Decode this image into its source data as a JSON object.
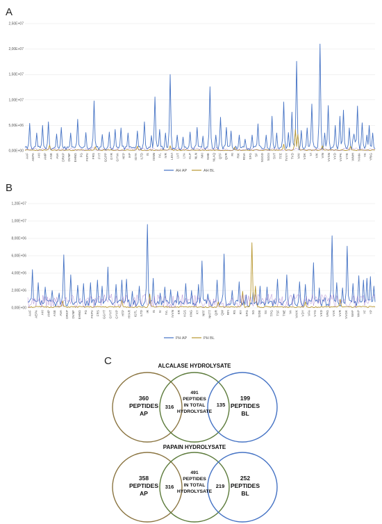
{
  "colors": {
    "ap_line": "#4472c4",
    "bl_line": "#b8972f",
    "overlap_line": "#8e5cc0",
    "venn_ap": "#8a7440",
    "venn_total": "#5b7a3a",
    "venn_bl": "#4472c4"
  },
  "chart_data": [
    {
      "type": "line",
      "panel": "A",
      "ylim": [
        0,
        25000000
      ],
      "y_ticks": [
        "0,00E+00",
        "5,00E+06",
        "1,00E+07",
        "1,50E+07",
        "2,00E+07",
        "2,50E+07"
      ],
      "categories": [
        "AAF",
        "AEPA",
        "AKI",
        "AMP",
        "ASE",
        "AVA",
        "DRKP",
        "DVNF",
        "EHNG",
        "FG",
        "FKPV",
        "FRS",
        "FYT",
        "GGPP",
        "GYR",
        "GYVA",
        "HFP",
        "IAP",
        "IGYA",
        "ILTD",
        "IS",
        "ISNN",
        "IVL",
        "IVR",
        "LEVI",
        "LVT",
        "LYA",
        "KLP",
        "NLN",
        "NKI",
        "NHE",
        "NLAQ",
        "QTF",
        "QVR",
        "RI",
        "RIK",
        "RIVA",
        "SFG",
        "SF",
        "SGGD",
        "SGGI",
        "SVT",
        "TFE",
        "TVVY",
        "TVD",
        "VAV",
        "VDK",
        "VI",
        "VIK",
        "VIN",
        "VVSN",
        "VVD",
        "VVPK",
        "VYE",
        "WMH",
        "YAMA",
        "YK",
        "YRIG"
      ],
      "series": [
        {
          "name": "AH AP",
          "peaks": [
            [
              0.012,
              5.4
            ],
            [
              0.035,
              3.5
            ],
            [
              0.05,
              5.0
            ],
            [
              0.066,
              5.7
            ],
            [
              0.09,
              3.3
            ],
            [
              0.105,
              4.6
            ],
            [
              0.13,
              3.5
            ],
            [
              0.15,
              6.2
            ],
            [
              0.175,
              3.6
            ],
            [
              0.197,
              9.8
            ],
            [
              0.22,
              3.2
            ],
            [
              0.24,
              3.7
            ],
            [
              0.258,
              4.2
            ],
            [
              0.275,
              4.5
            ],
            [
              0.295,
              3.5
            ],
            [
              0.32,
              3.9
            ],
            [
              0.34,
              5.7
            ],
            [
              0.36,
              3.0
            ],
            [
              0.372,
              10.6
            ],
            [
              0.385,
              4.2
            ],
            [
              0.4,
              3.5
            ],
            [
              0.415,
              15.0
            ],
            [
              0.435,
              3.1
            ],
            [
              0.45,
              2.7
            ],
            [
              0.47,
              3.7
            ],
            [
              0.49,
              4.6
            ],
            [
              0.51,
              2.9
            ],
            [
              0.527,
              12.6
            ],
            [
              0.545,
              3.1
            ],
            [
              0.56,
              6.6
            ],
            [
              0.575,
              4.6
            ],
            [
              0.59,
              3.9
            ],
            [
              0.612,
              3.1
            ],
            [
              0.63,
              2.3
            ],
            [
              0.65,
              3.1
            ],
            [
              0.665,
              5.3
            ],
            [
              0.69,
              3.1
            ],
            [
              0.705,
              6.8
            ],
            [
              0.72,
              3.5
            ],
            [
              0.74,
              9.6
            ],
            [
              0.752,
              3.6
            ],
            [
              0.762,
              7.6
            ],
            [
              0.775,
              17.6
            ],
            [
              0.79,
              4.0
            ],
            [
              0.807,
              4.5
            ],
            [
              0.82,
              9.2
            ],
            [
              0.84,
              3.1
            ],
            [
              0.857,
              3.5
            ],
            [
              0.866,
              8.9
            ],
            [
              0.885,
              5.0
            ],
            [
              0.898,
              4.6
            ],
            [
              0.91,
              8.0
            ],
            [
              0.925,
              4.5
            ],
            [
              0.94,
              8.6
            ],
            [
              0.95,
              8.8
            ],
            [
              0.964,
              6.5
            ],
            [
              0.975,
              3.1
            ],
            [
              0.982,
              5.0
            ],
            [
              0.993,
              3.5
            ]
          ],
          "base": 0.5,
          "extra_peaks": [
            [
              0.843,
              21.0
            ],
            [
              0.9,
              6.8
            ],
            [
              0.94,
              3.3
            ],
            [
              0.962,
              5.5
            ]
          ]
        },
        {
          "name": "AH BL",
          "peaks": [
            [
              0.07,
              1.1
            ],
            [
              0.2,
              0.8
            ],
            [
              0.32,
              0.9
            ],
            [
              0.415,
              1.0
            ],
            [
              0.6,
              0.7
            ],
            [
              0.74,
              1.3
            ],
            [
              0.772,
              4.2
            ],
            [
              0.78,
              3.2
            ],
            [
              0.85,
              1.0
            ],
            [
              0.93,
              0.9
            ]
          ],
          "base": 0.12
        }
      ]
    },
    {
      "type": "line",
      "panel": "B",
      "ylim": [
        0,
        12000000
      ],
      "y_ticks": [
        "0,00E+00",
        "2,00E+06",
        "4,00E+06",
        "6,00E+06",
        "8,00E+06",
        "1,00E+07",
        "1,20E+07"
      ],
      "categories": [
        "AAF",
        "AEPA",
        "AKI",
        "AMP",
        "ASE",
        "AVA",
        "DRKP",
        "DVNF",
        "EHNG",
        "FG",
        "FKPV",
        "FRS",
        "GGYT",
        "GYVT",
        "GYVP",
        "HTP",
        "HYAR",
        "IGTL",
        "ILTD",
        "IR",
        "IS",
        "IV",
        "IVL",
        "IVVN",
        "KR",
        "KGS",
        "KNG",
        "KY",
        "NFF",
        "NKTT",
        "QIR",
        "QW",
        "RFI",
        "RS",
        "RY",
        "SFG",
        "SG",
        "SIDE",
        "SV",
        "TPG",
        "TSF",
        "TNE",
        "VA",
        "VAVK",
        "VDY",
        "VFA",
        "VYG",
        "VKD",
        "VRG",
        "VVK",
        "VVR",
        "VVGK",
        "WAF",
        "WAP",
        "YF",
        "YP"
      ],
      "series": [
        {
          "name": "PH AP",
          "peaks": [
            [
              0.012,
              4.4
            ],
            [
              0.03,
              2.9
            ],
            [
              0.05,
              2.4
            ],
            [
              0.07,
              2.0
            ],
            [
              0.09,
              1.7
            ],
            [
              0.105,
              6.1
            ],
            [
              0.125,
              3.8
            ],
            [
              0.145,
              2.6
            ],
            [
              0.16,
              2.8
            ],
            [
              0.18,
              2.9
            ],
            [
              0.2,
              3.2
            ],
            [
              0.215,
              2.5
            ],
            [
              0.23,
              4.7
            ],
            [
              0.255,
              2.7
            ],
            [
              0.27,
              3.2
            ],
            [
              0.285,
              3.3
            ],
            [
              0.3,
              1.9
            ],
            [
              0.32,
              2.5
            ],
            [
              0.345,
              9.6
            ],
            [
              0.36,
              3.4
            ],
            [
              0.38,
              1.7
            ],
            [
              0.395,
              2.4
            ],
            [
              0.41,
              2.1
            ],
            [
              0.43,
              1.9
            ],
            [
              0.455,
              2.8
            ],
            [
              0.47,
              2.0
            ],
            [
              0.49,
              2.7
            ],
            [
              0.5,
              5.4
            ],
            [
              0.52,
              1.6
            ],
            [
              0.545,
              3.2
            ],
            [
              0.565,
              6.2
            ],
            [
              0.59,
              2.0
            ],
            [
              0.61,
              3.0
            ],
            [
              0.63,
              1.5
            ],
            [
              0.65,
              1.8
            ],
            [
              0.67,
              2.5
            ],
            [
              0.69,
              2.4
            ],
            [
              0.72,
              3.3
            ],
            [
              0.745,
              3.8
            ],
            [
              0.765,
              1.6
            ],
            [
              0.782,
              3.0
            ],
            [
              0.8,
              2.7
            ],
            [
              0.822,
              5.2
            ],
            [
              0.84,
              2.3
            ],
            [
              0.855,
              1.2
            ],
            [
              0.875,
              8.3
            ],
            [
              0.89,
              2.9
            ],
            [
              0.905,
              2.3
            ],
            [
              0.92,
              7.1
            ],
            [
              0.935,
              2.8
            ],
            [
              0.952,
              3.7
            ],
            [
              0.965,
              3.2
            ],
            [
              0.975,
              3.4
            ],
            [
              0.988,
              3.6
            ],
            [
              0.998,
              2.5
            ]
          ],
          "base": 0.5,
          "extra_peaks": []
        },
        {
          "name": "PH BL",
          "peaks": [
            [
              0.1,
              0.8
            ],
            [
              0.27,
              0.9
            ],
            [
              0.35,
              1.6
            ],
            [
              0.55,
              0.7
            ],
            [
              0.62,
              1.9
            ],
            [
              0.647,
              7.5
            ],
            [
              0.655,
              2.5
            ],
            [
              0.8,
              0.7
            ],
            [
              0.9,
              1.0
            ]
          ],
          "base": 0.1
        }
      ]
    }
  ],
  "panelA": {
    "letter": "A",
    "legend": [
      "AH AP",
      "AH BL"
    ]
  },
  "panelB": {
    "letter": "B",
    "legend": [
      "PH AP",
      "PH BL"
    ]
  },
  "panelC": {
    "letter": "C",
    "alcalase": {
      "title": "ALCALASE HYDROLYSATE",
      "ap_count": "360",
      "ap_l1": "PEPTIDES",
      "ap_l2": "AP",
      "ap_total_overlap": "316",
      "total_count": "491",
      "total_l1": "PEPTIDES",
      "total_l2": "IN TOTAL",
      "total_l3": "HYDROLYSATE",
      "total_bl_overlap": "135",
      "bl_count": "199",
      "bl_l1": "PEPTIDES",
      "bl_l2": "BL"
    },
    "papain": {
      "title": "PAPAIN HYDROLYSATE",
      "ap_count": "358",
      "ap_l1": "PEPTIDES",
      "ap_l2": "AP",
      "ap_total_overlap": "316",
      "total_count": "491",
      "total_l1": "PEPTIDES",
      "total_l2": "IN TOTAL",
      "total_l3": "HYDROLYSATE",
      "total_bl_overlap": "219",
      "bl_count": "252",
      "bl_l1": "PEPTIDES",
      "bl_l2": "BL"
    }
  }
}
